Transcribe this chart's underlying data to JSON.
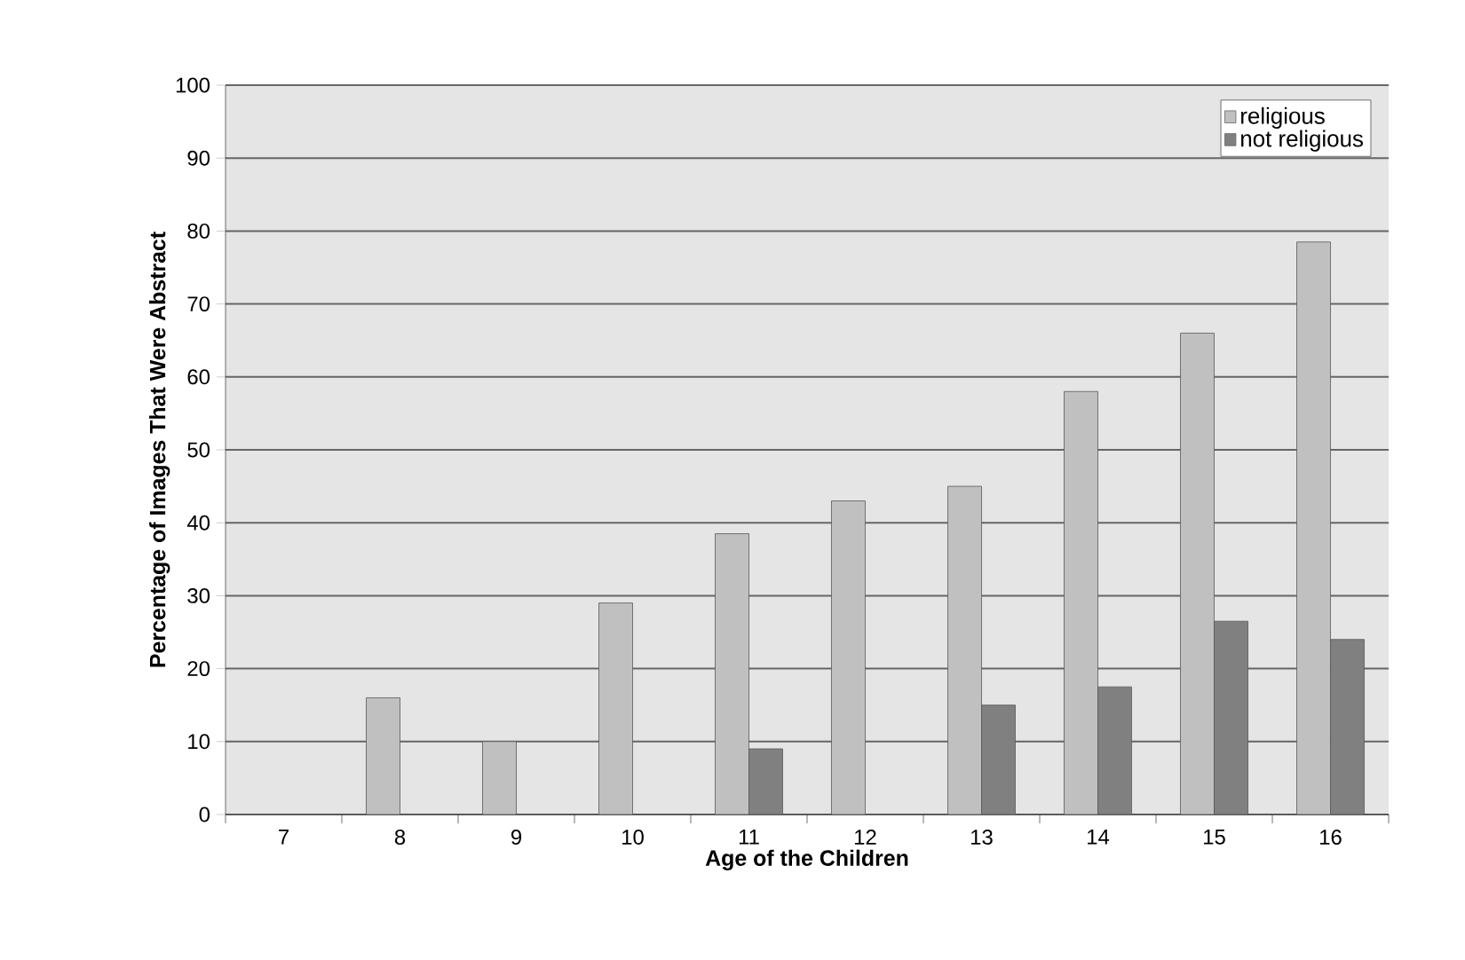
{
  "chart_data": {
    "type": "bar",
    "xlabel": "Age of the Children",
    "ylabel": "Percentage of Images That Were Abstract",
    "categories": [
      "7",
      "8",
      "9",
      "10",
      "11",
      "12",
      "13",
      "14",
      "15",
      "16"
    ],
    "series": [
      {
        "name": "religious",
        "color": "#c0c0c0",
        "values": [
          null,
          16,
          10,
          29,
          38.5,
          43,
          45,
          58,
          66,
          78.5
        ]
      },
      {
        "name": "not religious",
        "color": "#808080",
        "values": [
          null,
          null,
          null,
          null,
          9,
          null,
          15,
          17.5,
          26.5,
          24
        ]
      }
    ],
    "ylim": [
      0,
      100
    ],
    "yticks": [
      0,
      10,
      20,
      30,
      40,
      50,
      60,
      70,
      80,
      90,
      100
    ],
    "grid": "y",
    "legend": "top right"
  }
}
